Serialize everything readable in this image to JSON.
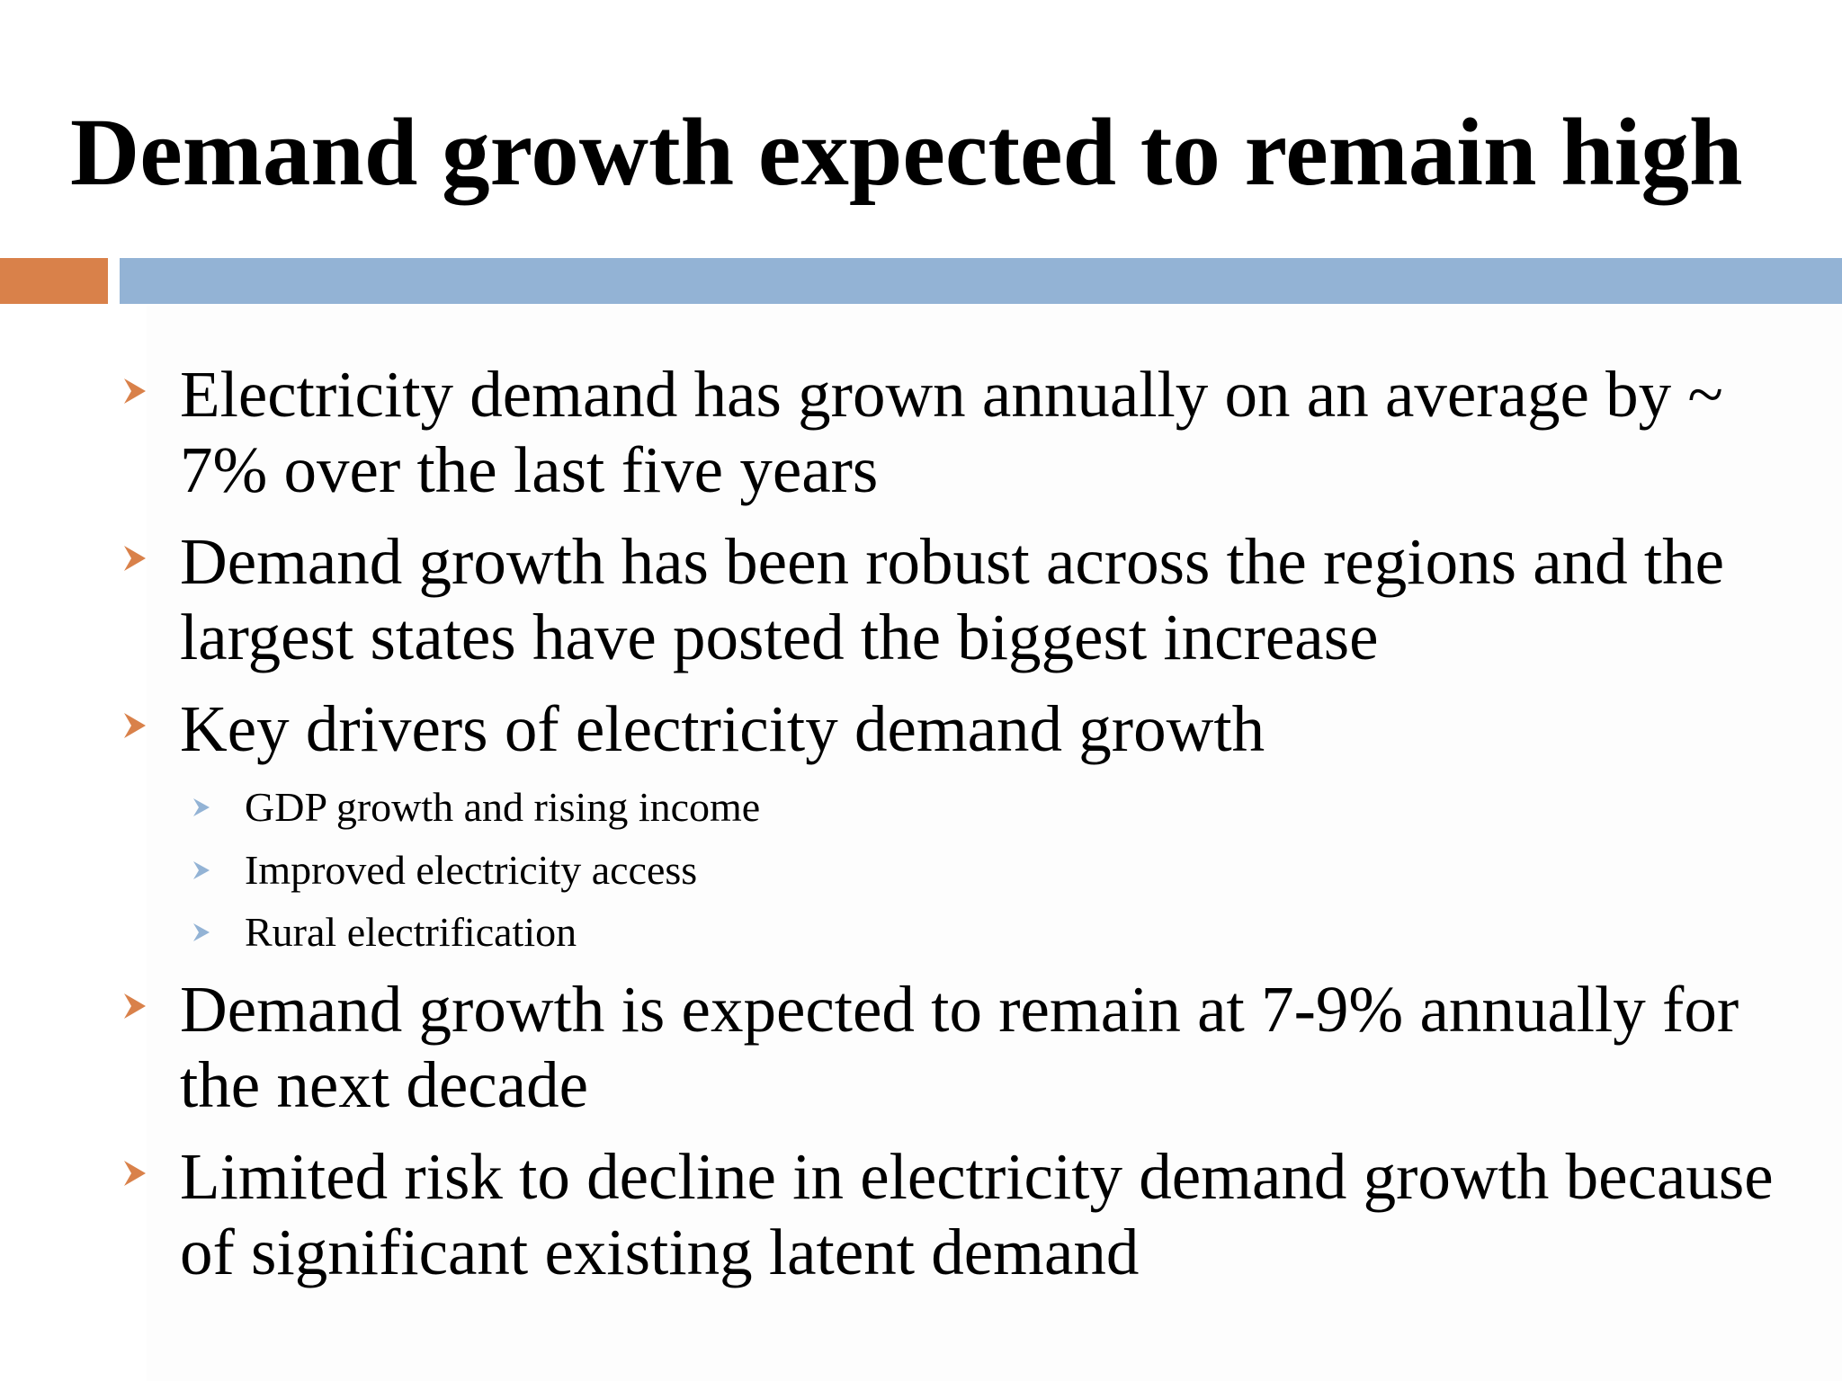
{
  "slide": {
    "title": "Demand growth expected to remain high",
    "accent_colors": {
      "orange": "#d9814a",
      "blue": "#93b3d5"
    },
    "bullets": [
      {
        "text": "Electricity demand has grown annually on an average by ~ 7% over the last five years"
      },
      {
        "text": "Demand growth has been robust across the regions and the largest states have posted the biggest increase"
      },
      {
        "text": "Key drivers of electricity demand growth",
        "sub_items": [
          "GDP growth and rising income",
          "Improved electricity access",
          "Rural electrification"
        ]
      },
      {
        "text": "Demand growth is expected to remain at 7-9% annually for the next decade"
      },
      {
        "text": "Limited risk to decline in electricity demand growth because of significant existing latent demand"
      }
    ],
    "bullet_marker_icon": "arrowhead-bullet-icon",
    "bullet_marker_color": "#d9814a",
    "sub_bullet_marker_color": "#93b3d5"
  }
}
